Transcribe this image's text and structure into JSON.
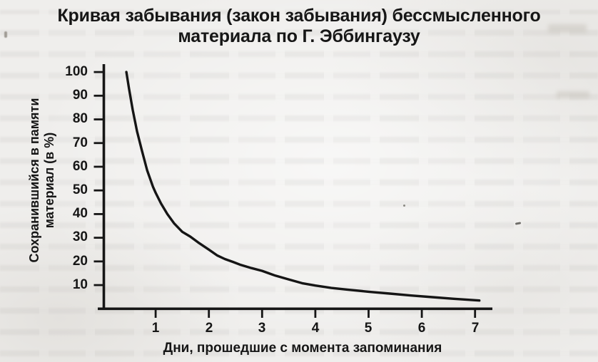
{
  "colors": {
    "paper": "#efeeec",
    "ink": "#161616",
    "curve": "#151515"
  },
  "title": {
    "line1": "Кривая забывания (закон забывания) бессмысленного",
    "line2": "материала по Г. Эббингаузу"
  },
  "chart_data": {
    "type": "line",
    "title": "Кривая забывания (закон забывания) бессмысленного материала по Г. Эббингаузу",
    "xlabel": "Дни, прошедшие с момента запоминания",
    "ylabel": "Сохранившийся в памяти материал (в %)",
    "ylabel_lines": [
      "Сохранившийся в памяти",
      "материал (в %)"
    ],
    "xlim": [
      0,
      7.3
    ],
    "ylim": [
      0,
      103
    ],
    "grid": false,
    "legend": "none",
    "xticks": [
      "1",
      "2",
      "3",
      "4",
      "5",
      "6",
      "7"
    ],
    "yticks": [
      "100",
      "90",
      "80",
      "70",
      "60",
      "50",
      "40",
      "30",
      "20",
      "10"
    ],
    "xticks_num": [
      1,
      2,
      3,
      4,
      5,
      6,
      7
    ],
    "yticks_num": [
      100,
      90,
      80,
      70,
      60,
      50,
      40,
      30,
      20,
      10
    ],
    "series": [
      {
        "name": "Сохранившийся в памяти материал",
        "points": [
          [
            0.45,
            100
          ],
          [
            0.5,
            93
          ],
          [
            0.57,
            84
          ],
          [
            0.65,
            75
          ],
          [
            0.74,
            67
          ],
          [
            0.84,
            58.5
          ],
          [
            0.95,
            51.5
          ],
          [
            1.0,
            49
          ],
          [
            1.1,
            44.5
          ],
          [
            1.22,
            40
          ],
          [
            1.35,
            36
          ],
          [
            1.5,
            32.5
          ],
          [
            1.65,
            30.5
          ],
          [
            1.8,
            28
          ],
          [
            2.0,
            25
          ],
          [
            2.16,
            22.5
          ],
          [
            2.3,
            21
          ],
          [
            2.45,
            19.8
          ],
          [
            2.6,
            18.5
          ],
          [
            2.8,
            17.2
          ],
          [
            3.0,
            16
          ],
          [
            3.25,
            14
          ],
          [
            3.5,
            12.4
          ],
          [
            3.75,
            10.8
          ],
          [
            4.0,
            9.8
          ],
          [
            4.3,
            8.8
          ],
          [
            4.6,
            8.1
          ],
          [
            5.0,
            7.2
          ],
          [
            5.4,
            6.4
          ],
          [
            5.8,
            5.6
          ],
          [
            6.2,
            4.9
          ],
          [
            6.6,
            4.2
          ],
          [
            7.08,
            3.5
          ]
        ]
      }
    ],
    "readings_by_day": {
      "1": 49,
      "2": 25,
      "3": 16,
      "4": 10,
      "5": 7,
      "6": 5,
      "7": 3.5
    }
  }
}
